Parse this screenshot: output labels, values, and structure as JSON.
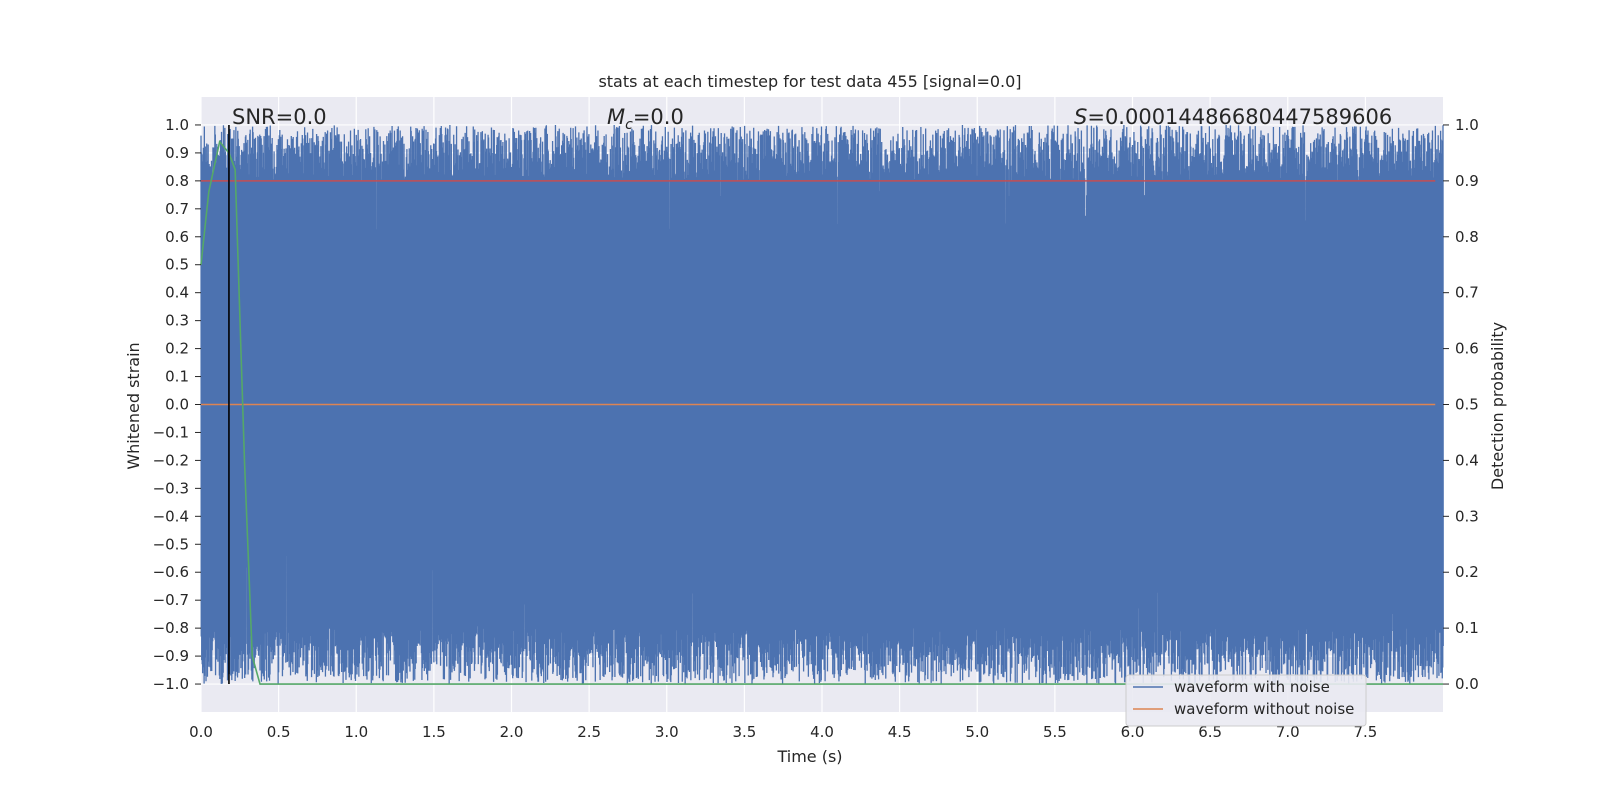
{
  "chart_data": {
    "type": "line",
    "title": "stats at each timestep for test data 455 [signal=0.0]",
    "xlabel": "Time (s)",
    "ylabel": "Whitened strain",
    "y2label": "Detection probability",
    "xlim": [
      0.0,
      8.0
    ],
    "ylim": [
      -1.1,
      1.1
    ],
    "y2lim": [
      -0.05,
      1.05
    ],
    "xticks": [
      "0.0",
      "0.5",
      "1.0",
      "1.5",
      "2.0",
      "2.5",
      "3.0",
      "3.5",
      "4.0",
      "4.5",
      "5.0",
      "5.5",
      "6.0",
      "6.5",
      "7.0",
      "7.5"
    ],
    "xtick_values": [
      0.0,
      0.5,
      1.0,
      1.5,
      2.0,
      2.5,
      3.0,
      3.5,
      4.0,
      4.5,
      5.0,
      5.5,
      6.0,
      6.5,
      7.0,
      7.5
    ],
    "yticks": [
      "1.0",
      "0.9",
      "0.8",
      "0.7",
      "0.6",
      "0.5",
      "0.4",
      "0.3",
      "0.2",
      "0.1",
      "0.0",
      "−0.1",
      "−0.2",
      "−0.3",
      "−0.4",
      "−0.5",
      "−0.6",
      "−0.7",
      "−0.8",
      "−0.9",
      "−1.0"
    ],
    "ytick_values": [
      1.0,
      0.9,
      0.8,
      0.7,
      0.6,
      0.5,
      0.4,
      0.3,
      0.2,
      0.1,
      0.0,
      -0.1,
      -0.2,
      -0.3,
      -0.4,
      -0.5,
      -0.6,
      -0.7,
      -0.8,
      -0.9,
      -1.0
    ],
    "y2ticks": [
      "1.0",
      "0.9",
      "0.8",
      "0.7",
      "0.6",
      "0.5",
      "0.4",
      "0.3",
      "0.2",
      "0.1",
      "0.0"
    ],
    "y2tick_values": [
      1.0,
      0.9,
      0.8,
      0.7,
      0.6,
      0.5,
      0.4,
      0.3,
      0.2,
      0.1,
      0.0
    ],
    "grid": true,
    "annotations": {
      "snr": "SNR=0.0",
      "mc_symbol": "M",
      "mc_sub": "c",
      "mc_value": "=0.0",
      "s_symbol": "S",
      "s_value": "=0.00014486680447589606"
    },
    "series": [
      {
        "name": "waveform with noise",
        "color": "#4c72b0",
        "description": "dense whitened noise filling roughly -1.0 to 1.0 over 0–8 s"
      },
      {
        "name": "waveform without noise",
        "color": "#dd8452",
        "values_constant": 0.0
      },
      {
        "name": "detection probability",
        "color": "#55a868",
        "axis": "right",
        "x": [
          0.0,
          0.05,
          0.12,
          0.18,
          0.22,
          0.28,
          0.33,
          0.38,
          0.45,
          8.0
        ],
        "y": [
          0.75,
          0.88,
          0.97,
          0.95,
          0.92,
          0.4,
          0.05,
          0.0,
          0.0,
          0.0
        ]
      }
    ],
    "threshold": {
      "value": 0.9,
      "axis": "right",
      "color": "#c44e52"
    },
    "vline": {
      "x": 0.18,
      "color": "#000000"
    },
    "legend": {
      "placement": "lower-right",
      "entries": [
        "waveform with noise",
        "waveform without noise"
      ]
    }
  }
}
